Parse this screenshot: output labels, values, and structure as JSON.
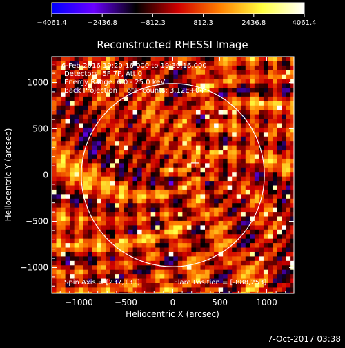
{
  "colorbar": {
    "ticks": [
      "-4061.4",
      "-2436.8",
      "-812.3",
      "812.3",
      "2436.8",
      "4061.4"
    ],
    "min": -4061.4,
    "max": 4061.4,
    "palette": [
      "#0000ff",
      "#6a00ff",
      "#000000",
      "#d00000",
      "#ff8000",
      "#ffff40",
      "#ffffff"
    ]
  },
  "chart_data": {
    "type": "heatmap",
    "title": "Reconstructed RHESSI Image",
    "xlabel": "Heliocentric X (arcsec)",
    "ylabel": "Heliocentric Y (arcsec)",
    "xlim": [
      -1290,
      1290
    ],
    "ylim": [
      -1280,
      1280
    ],
    "xticks": [
      -1000,
      -500,
      0,
      500,
      1000
    ],
    "yticks": [
      1000,
      500,
      0,
      -500,
      -1000
    ],
    "xtick_labels": [
      "−1000",
      "−500",
      "0",
      "500",
      "1000"
    ],
    "ytick_labels": [
      "1000",
      "500",
      "0",
      "−500",
      "−1000"
    ],
    "solar_limb_radius": 975,
    "center_marker": [
      237,
      131
    ],
    "flare_position": [
      -888,
      253
    ],
    "grid": false
  },
  "info": {
    "line1": "6-Feb-2016 19:20:16.000 to 19:30:16.000",
    "line2": "Detectors: 5F 7F, Att 0",
    "line3": "Energy Range: 6.0 - 25.0 keV",
    "line4": "Back Projection   Total counts: 3.12E+04"
  },
  "footer": {
    "spin_axis": "Spin Axis = [237,131]",
    "flare_position": "Flare Position = [-888,253]",
    "timestamp": "7-Oct-2017 03:38"
  }
}
